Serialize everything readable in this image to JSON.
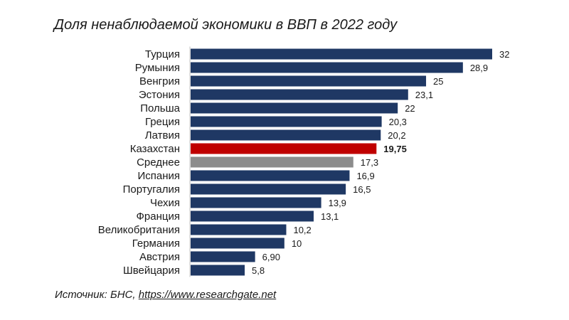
{
  "chart_data": {
    "type": "bar",
    "orientation": "horizontal",
    "title": "Доля ненаблюдаемой экономики в ВВП в 2022 году",
    "categories": [
      "Турция",
      "Румыния",
      "Венгрия",
      "Эстония",
      "Польша",
      "Греция",
      "Латвия",
      "Казахстан",
      "Среднее",
      "Испания",
      "Португалия",
      "Чехия",
      "Франция",
      "Великобритания",
      "Германия",
      "Австрия",
      "Швейцария"
    ],
    "values": [
      32,
      28.9,
      25,
      23.1,
      22,
      20.3,
      20.2,
      19.75,
      17.3,
      16.9,
      16.5,
      13.9,
      13.1,
      10.2,
      10,
      6.9,
      5.8
    ],
    "value_labels": [
      "32",
      "28,9",
      "25",
      "23,1",
      "22",
      "20,3",
      "20,2",
      "19,75",
      "17,3",
      "16,9",
      "16,5",
      "13,9",
      "13,1",
      "10,2",
      "10",
      "6,90",
      "5,8"
    ],
    "highlight": {
      "Казахстан": "#c00000",
      "Среднее": "#8c8c8c"
    },
    "bar_color": "#1f3864",
    "xlim": [
      0,
      32
    ],
    "grid": false,
    "legend": "none"
  },
  "source": {
    "prefix": "Источник: БНС, ",
    "link": "https://www.researchgate.net"
  }
}
